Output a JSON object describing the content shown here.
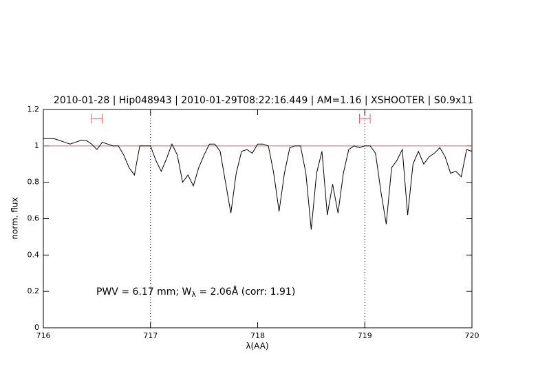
{
  "chart_data": {
    "type": "line",
    "title": "2010-01-28 | Hip048943 | 2010-01-29T08:22:16.449 | AM=1.16 | XSHOOTER | S0.9x11",
    "x_label": "λ(AA)",
    "y_label": "norm. flux",
    "annotation": [
      "PWV = 6.17 mm; W",
      "λ",
      " = 2.06Å (corr: 1.91)"
    ],
    "xlim": [
      716,
      720
    ],
    "ylim": [
      0,
      1.2
    ],
    "xticks": [
      716,
      717,
      718,
      719,
      720
    ],
    "yticks": [
      0,
      0.2,
      0.4,
      0.6,
      0.8,
      1,
      1.2
    ],
    "hlines": [
      1
    ],
    "hline_color": "#e06060",
    "vlines": [
      717,
      719
    ],
    "markers": [
      {
        "x": [
          716.45,
          716.55
        ],
        "y": 1.15
      },
      {
        "x": [
          718.95,
          719.05
        ],
        "y": 1.15
      }
    ],
    "marker_color": "#e06060",
    "series": [
      {
        "color": "#000000",
        "x": [
          716.0,
          716.05,
          716.1,
          716.15,
          716.2,
          716.25,
          716.3,
          716.35,
          716.4,
          716.45,
          716.5,
          716.55,
          716.6,
          716.65,
          716.7,
          716.75,
          716.8,
          716.85,
          716.9,
          716.95,
          717.0,
          717.05,
          717.1,
          717.15,
          717.2,
          717.25,
          717.3,
          717.35,
          717.4,
          717.45,
          717.5,
          717.55,
          717.6,
          717.65,
          717.7,
          717.75,
          717.8,
          717.85,
          717.9,
          717.95,
          718.0,
          718.05,
          718.1,
          718.15,
          718.2,
          718.25,
          718.3,
          718.35,
          718.4,
          718.45,
          718.5,
          718.55,
          718.6,
          718.65,
          718.7,
          718.75,
          718.8,
          718.85,
          718.9,
          718.95,
          719.0,
          719.05,
          719.1,
          719.15,
          719.2,
          719.25,
          719.3,
          719.35,
          719.4,
          719.45,
          719.5,
          719.55,
          719.6,
          719.65,
          719.7,
          719.75,
          719.8,
          719.85,
          719.9,
          719.95,
          720.0
        ],
        "values": [
          1.04,
          1.04,
          1.04,
          1.03,
          1.02,
          1.01,
          1.02,
          1.03,
          1.03,
          1.01,
          0.98,
          1.02,
          1.01,
          1.0,
          1.0,
          0.95,
          0.88,
          0.84,
          1.0,
          1.0,
          1.0,
          0.92,
          0.86,
          0.93,
          1.01,
          0.95,
          0.8,
          0.84,
          0.78,
          0.88,
          0.95,
          1.01,
          1.01,
          0.97,
          0.8,
          0.63,
          0.85,
          0.97,
          0.98,
          0.96,
          1.01,
          1.01,
          1.0,
          0.85,
          0.64,
          0.85,
          0.99,
          1.0,
          1.0,
          0.85,
          0.54,
          0.85,
          0.97,
          0.62,
          0.79,
          0.63,
          0.85,
          0.98,
          1.0,
          0.99,
          1.0,
          1.0,
          0.96,
          0.75,
          0.57,
          0.88,
          0.92,
          0.98,
          0.62,
          0.9,
          0.97,
          0.9,
          0.94,
          0.96,
          0.99,
          0.94,
          0.85,
          0.86,
          0.83,
          0.98,
          0.97
        ]
      }
    ],
    "title_color": "#1a1ad6"
  }
}
